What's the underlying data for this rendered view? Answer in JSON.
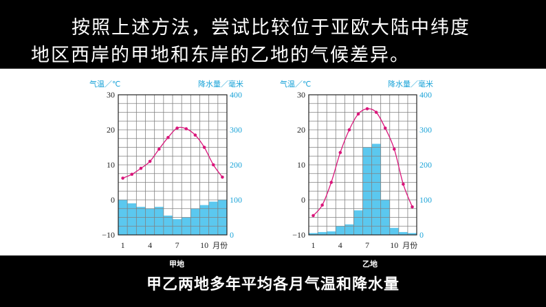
{
  "heading": {
    "line1": "按照上述方法，尝试比较位于亚欧大陆中纬度",
    "line2": "地区西岸的甲地和东岸的乙地的气候差异。"
  },
  "bottom_caption": "甲乙两地多年平均各月气温和降水量",
  "colors": {
    "temp_line": "#d9167a",
    "precip_bar": "#5bc8ef",
    "axis_label": "#1aa3d8"
  },
  "chart_data": [
    {
      "type": "bar+line",
      "caption": "甲地",
      "y_left_label": "气温／℃",
      "y_right_label": "降水量／毫米",
      "x_ticks": [
        "1",
        "4",
        "7",
        "10"
      ],
      "x_unit": "月份",
      "y_left_ticks": [
        "30",
        "20",
        "10",
        "0",
        "−10"
      ],
      "y_right_ticks": [
        "400",
        "300",
        "200",
        "100",
        "0"
      ],
      "ylim_left": [
        -10,
        30
      ],
      "ylim_right": [
        0,
        400
      ],
      "months": [
        1,
        2,
        3,
        4,
        5,
        6,
        7,
        8,
        9,
        10,
        11,
        12
      ],
      "temperature": [
        6.2,
        7.3,
        9,
        11,
        14.5,
        17.8,
        20.5,
        20.3,
        18.5,
        15,
        10,
        6.5
      ],
      "precipitation": [
        100,
        90,
        80,
        75,
        80,
        55,
        45,
        50,
        75,
        85,
        95,
        100
      ]
    },
    {
      "type": "bar+line",
      "caption": "乙地",
      "y_left_label": "气温／℃",
      "y_right_label": "降水量／毫米",
      "x_ticks": [
        "1",
        "4",
        "7",
        "10"
      ],
      "x_unit": "月份",
      "y_left_ticks": [
        "30",
        "20",
        "10",
        "0",
        "−10"
      ],
      "y_right_ticks": [
        "400",
        "300",
        "200",
        "100",
        "0"
      ],
      "ylim_left": [
        -10,
        30
      ],
      "ylim_right": [
        0,
        400
      ],
      "months": [
        1,
        2,
        3,
        4,
        5,
        6,
        7,
        8,
        9,
        10,
        11,
        12
      ],
      "temperature": [
        -4.5,
        -1.5,
        5,
        13.5,
        20,
        24.5,
        26,
        25,
        20.5,
        14.5,
        4.5,
        -2
      ],
      "precipitation": [
        5,
        8,
        10,
        25,
        30,
        70,
        250,
        260,
        100,
        20,
        8,
        5
      ]
    }
  ]
}
